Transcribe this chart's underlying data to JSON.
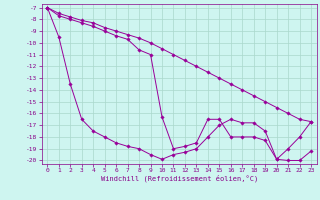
{
  "xlabel": "Windchill (Refroidissement éolien,°C)",
  "background_color": "#cef5f0",
  "grid_color": "#aad8cc",
  "line_color": "#990099",
  "xlim": [
    -0.5,
    23.5
  ],
  "ylim": [
    -20.3,
    -6.7
  ],
  "yticks": [
    -7,
    -8,
    -9,
    -10,
    -11,
    -12,
    -13,
    -14,
    -15,
    -16,
    -17,
    -18,
    -19,
    -20
  ],
  "xticks": [
    0,
    1,
    2,
    3,
    4,
    5,
    6,
    7,
    8,
    9,
    10,
    11,
    12,
    13,
    14,
    15,
    16,
    17,
    18,
    19,
    20,
    21,
    22,
    23
  ],
  "line1_x": [
    0,
    1,
    2,
    3,
    4,
    5,
    6,
    7,
    8,
    9,
    10,
    11,
    12,
    13,
    14,
    15,
    16,
    17,
    18,
    19,
    20,
    21,
    22,
    23
  ],
  "line1_y": [
    -7.0,
    -7.5,
    -7.8,
    -8.1,
    -8.3,
    -8.7,
    -9.0,
    -9.3,
    -9.6,
    -10.0,
    -10.5,
    -11.0,
    -11.5,
    -12.0,
    -12.5,
    -13.0,
    -13.5,
    -14.0,
    -14.5,
    -15.0,
    -15.5,
    -16.0,
    -16.5,
    -16.7
  ],
  "line2_x": [
    0,
    1,
    2,
    3,
    4,
    5,
    6,
    7,
    8,
    9,
    10,
    11,
    12,
    13,
    14,
    15,
    16,
    17,
    18,
    19,
    20,
    21,
    22,
    23
  ],
  "line2_y": [
    -7.0,
    -7.7,
    -8.0,
    -8.3,
    -8.6,
    -9.0,
    -9.4,
    -9.7,
    -10.6,
    -11.0,
    -16.3,
    -19.0,
    -18.8,
    -18.5,
    -16.5,
    -16.5,
    -18.0,
    -18.0,
    -18.0,
    -18.3,
    -19.9,
    -19.0,
    -18.0,
    -16.7
  ],
  "line3_x": [
    0,
    1,
    2,
    3,
    4,
    5,
    6,
    7,
    8,
    9,
    10,
    11,
    12,
    13,
    14,
    15,
    16,
    17,
    18,
    19,
    20,
    21,
    22,
    23
  ],
  "line3_y": [
    -7.0,
    -9.5,
    -13.5,
    -16.5,
    -17.5,
    -18.0,
    -18.5,
    -18.8,
    -19.0,
    -19.5,
    -19.9,
    -19.5,
    -19.3,
    -19.0,
    -18.0,
    -17.0,
    -16.5,
    -16.8,
    -16.8,
    -17.5,
    -19.9,
    -20.0,
    -20.0,
    -19.2
  ]
}
